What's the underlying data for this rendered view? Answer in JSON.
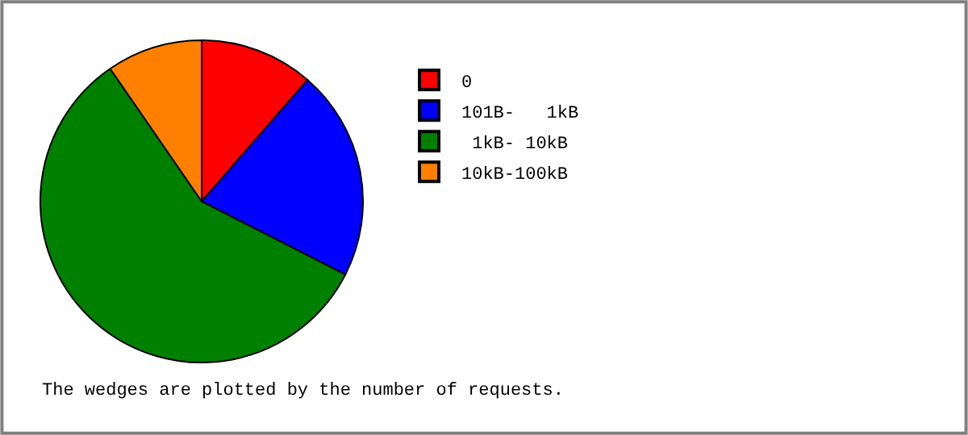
{
  "chart_data": {
    "type": "pie",
    "categories": [
      "0",
      "101B-   1kB",
      " 1kB- 10kB",
      "10kB-100kB"
    ],
    "values": [
      11.4,
      21.1,
      57.9,
      9.6
    ],
    "colors": [
      "#ff0000",
      "#0000ff",
      "#008000",
      "#ff8000"
    ],
    "legend": "top right",
    "annotations": [
      "The wedges are plotted by the number of requests."
    ]
  }
}
